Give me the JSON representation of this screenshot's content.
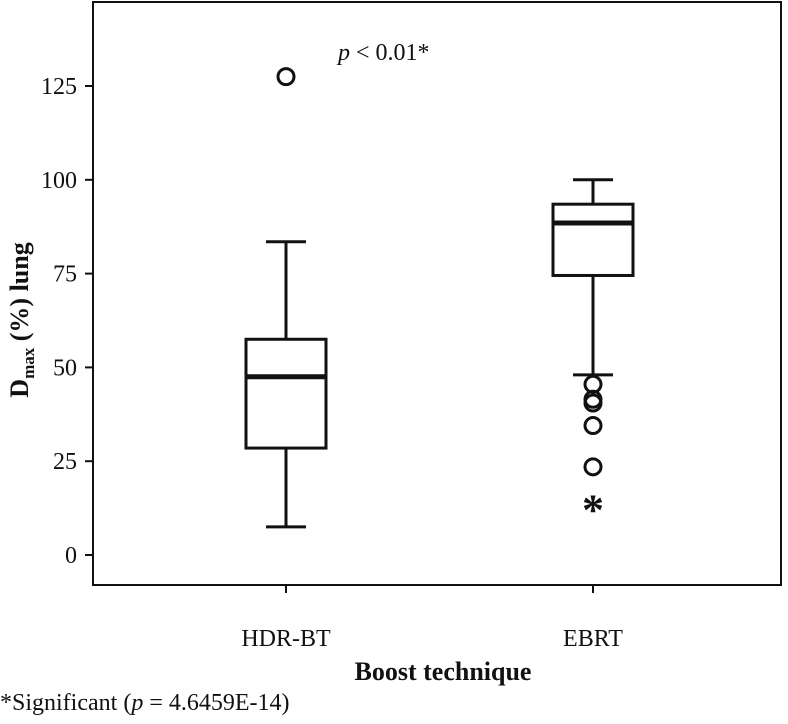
{
  "chart_data": {
    "type": "box",
    "xlabel": "Boost technique",
    "ylabel": {
      "main": "D",
      "sub": "max",
      "rest": " (%) lung"
    },
    "yticks": [
      0,
      25,
      50,
      75,
      100,
      125
    ],
    "ylim": [
      -8,
      147
    ],
    "categories": [
      "HDR-BT",
      "EBRT"
    ],
    "boxes": [
      {
        "name": "HDR-BT",
        "whisker_low": 7.5,
        "q1": 28.5,
        "median": 47.5,
        "q3": 57.5,
        "whisker_high": 83.5,
        "outliers": [
          127.5
        ],
        "extremes": []
      },
      {
        "name": "EBRT",
        "whisker_low": 48,
        "q1": 74.5,
        "median": 88.5,
        "q3": 93.5,
        "whisker_high": 100,
        "outliers": [
          45.5,
          41.5,
          40.5,
          34.5,
          23.5
        ],
        "extremes": [
          14
        ]
      }
    ],
    "annotation": {
      "p": "p",
      "rest": " < 0.01*"
    }
  },
  "footnote": {
    "prefix": "*Significant (",
    "p": "p",
    "rest": " = 4.6459E-14)"
  }
}
